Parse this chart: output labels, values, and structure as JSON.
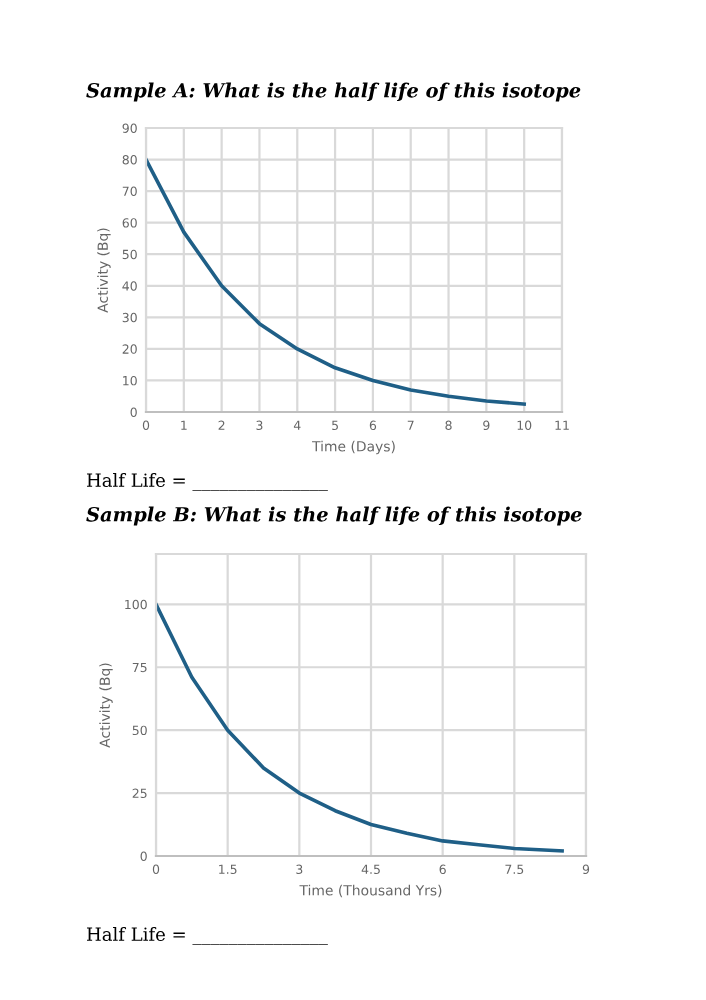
{
  "chart_data": [
    {
      "type": "line",
      "title": "Sample A: What is the half life of this isotope",
      "xlabel": "Time (Days)",
      "ylabel": "Activity (Bq)",
      "annotations": [
        "Half Life = _______________"
      ],
      "x": [
        0,
        1,
        2,
        3,
        4,
        5,
        6,
        7,
        8,
        9,
        10
      ],
      "series": [
        {
          "color": "#1f5f87",
          "values": [
            80,
            57,
            40,
            28,
            20,
            14,
            10,
            7,
            5,
            3.5,
            2.5
          ]
        }
      ],
      "xlim": [
        0,
        11
      ],
      "xticks": [
        0,
        1,
        2,
        3,
        4,
        5,
        6,
        7,
        8,
        9,
        10,
        11
      ],
      "ylim": [
        0,
        90
      ],
      "yticks": [
        0,
        10,
        20,
        30,
        40,
        50,
        60,
        70,
        80,
        90
      ],
      "grid": true,
      "marker": "none",
      "line_style": "solid"
    },
    {
      "type": "line",
      "title": "Sample B: What is the half life of this isotope",
      "xlabel": "Time (Thousand Yrs)",
      "ylabel": "Activity (Bq)",
      "annotations": [
        "Half Life = _______________"
      ],
      "x": [
        0,
        0.75,
        1.5,
        2.25,
        3,
        3.75,
        4.5,
        5.25,
        6,
        6.75,
        7.5,
        8.5
      ],
      "series": [
        {
          "color": "#1f5f87",
          "values": [
            100,
            71,
            50,
            35,
            25,
            18,
            12.5,
            9,
            6,
            4.5,
            3,
            2
          ]
        }
      ],
      "xlim": [
        0,
        9
      ],
      "xticks": [
        0,
        1.5,
        3,
        4.5,
        6,
        7.5,
        9
      ],
      "ylim": [
        0,
        120
      ],
      "yticks": [
        0,
        25,
        50,
        75,
        100
      ],
      "grid": true,
      "marker": "none",
      "line_style": "solid"
    }
  ]
}
